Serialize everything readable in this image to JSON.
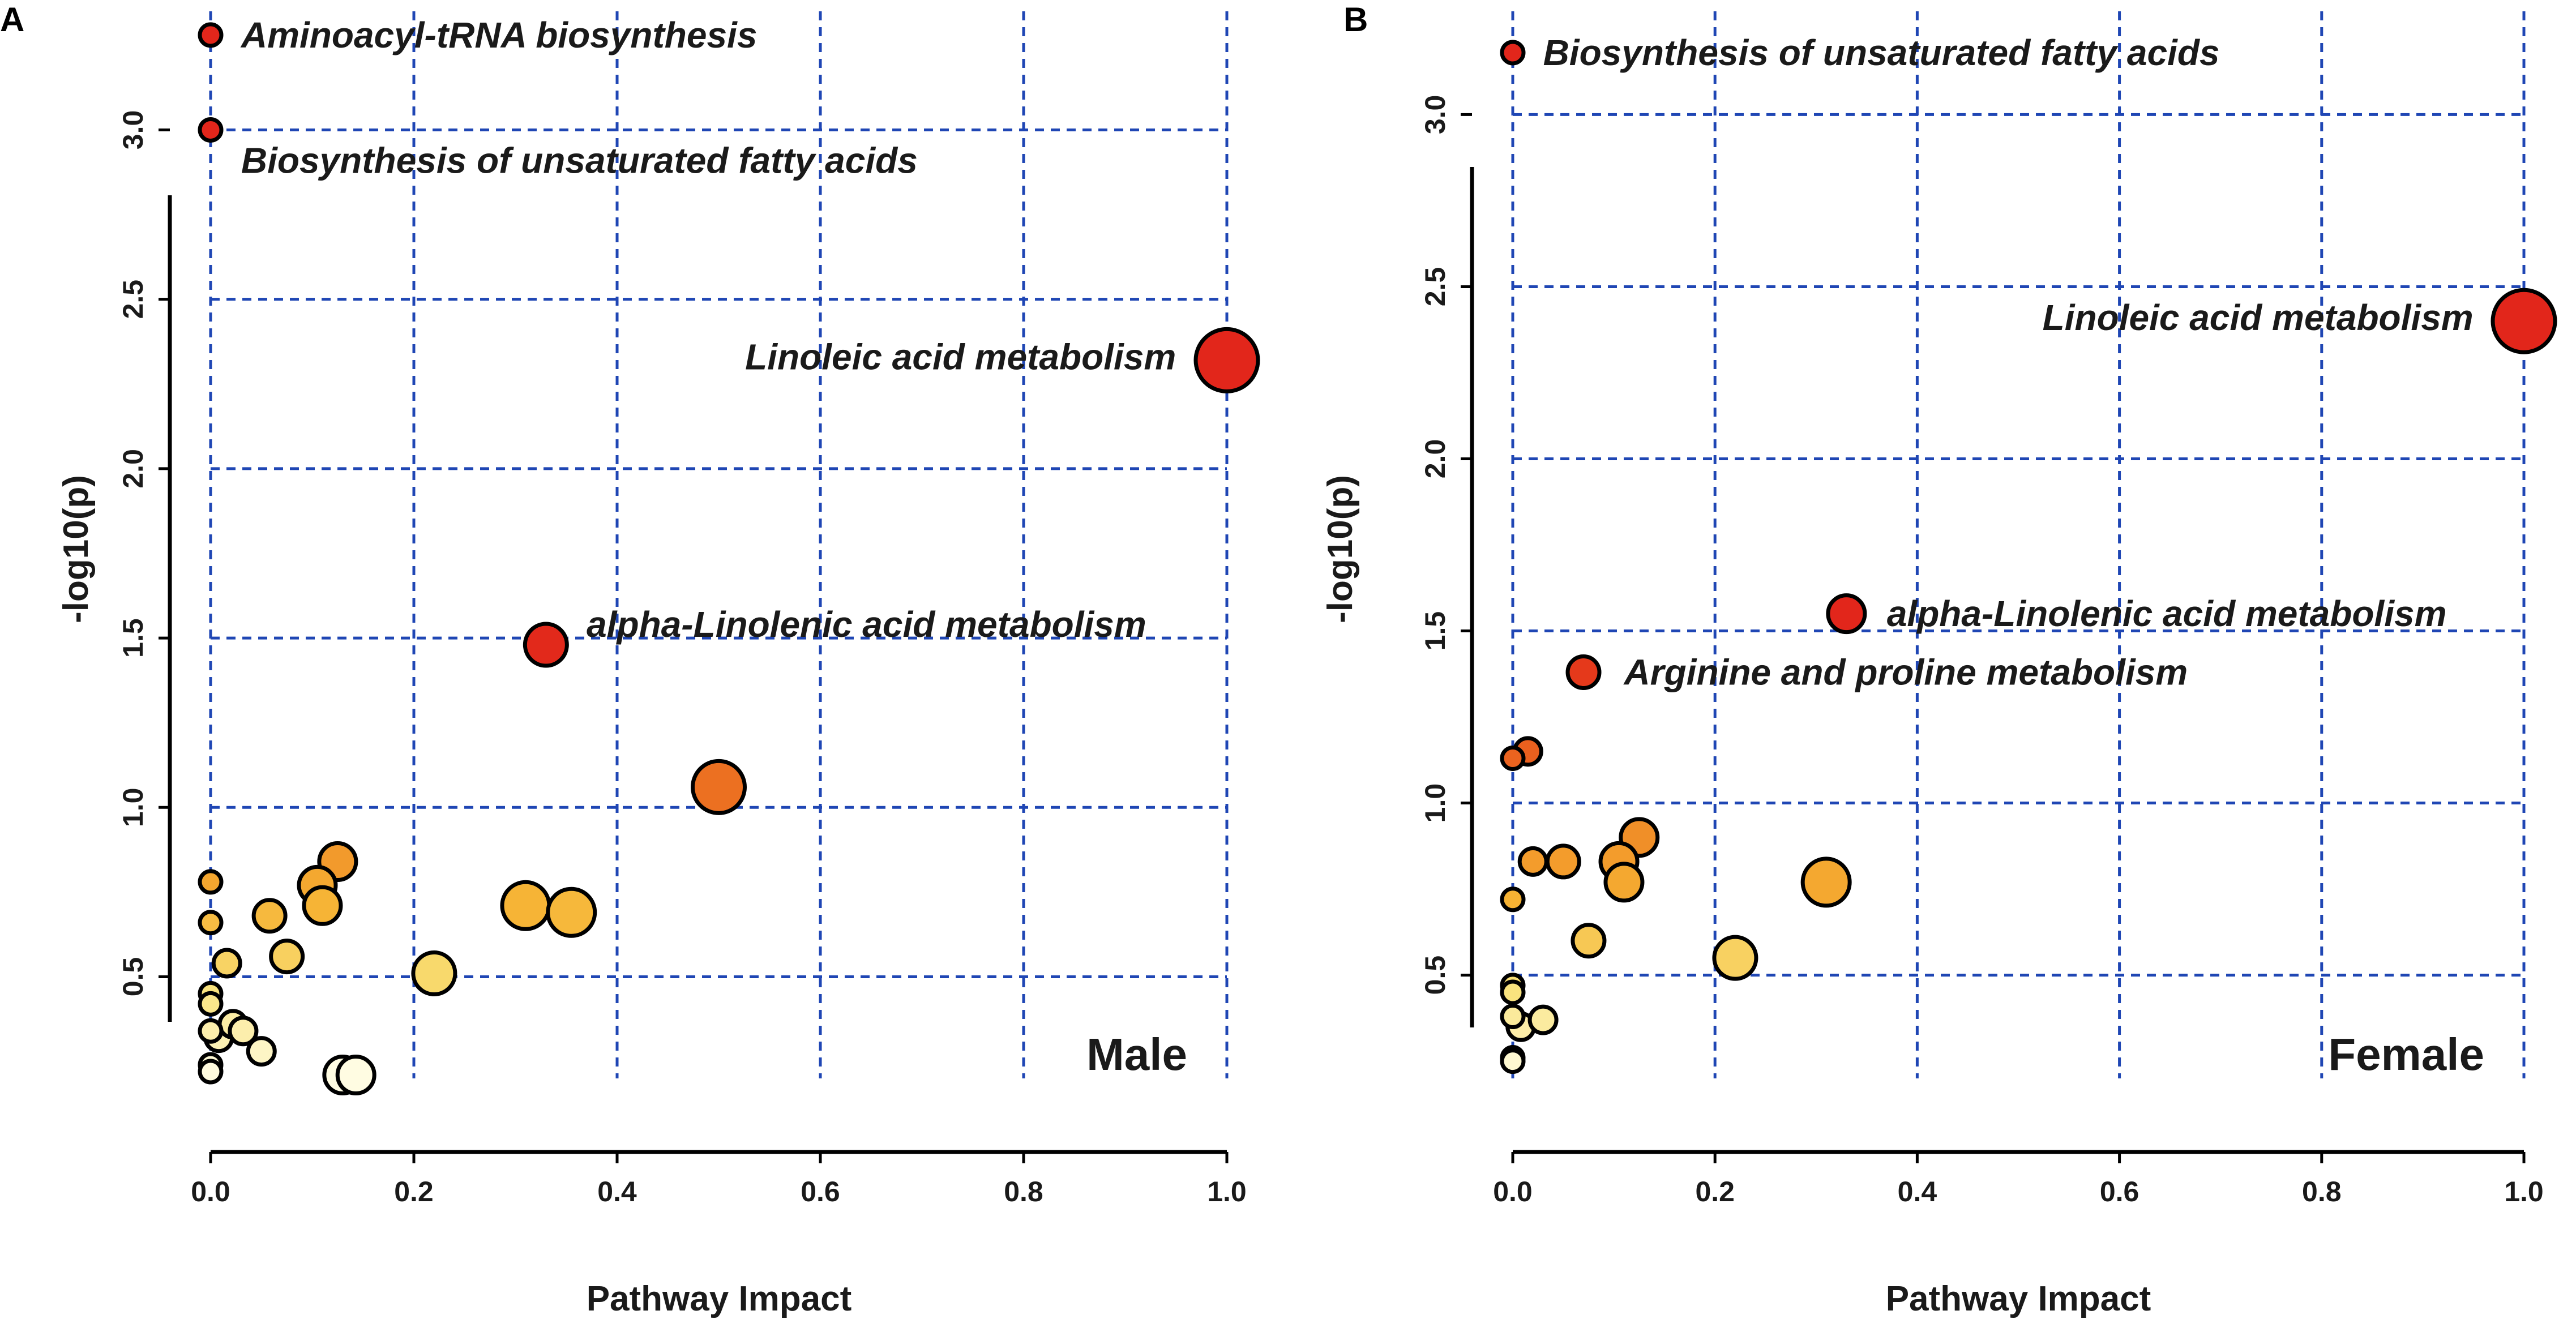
{
  "colors": {
    "grid": "#1f46b4",
    "low": "#fffde6",
    "high": "#e8261b"
  },
  "chart_data": [
    {
      "type": "scatter",
      "panel": "A",
      "corner_label": "Male",
      "xlabel": "Pathway Impact",
      "ylabel": "-log10(p)",
      "xlim": [
        0.0,
        1.0
      ],
      "ylim": [
        0.2,
        3.35
      ],
      "xticks": [
        "0.0",
        "0.2",
        "0.4",
        "0.6",
        "0.8",
        "1.0"
      ],
      "yticks": [
        "0.5",
        "1.0",
        "1.5",
        "2.0",
        "2.5",
        "3.0"
      ],
      "grid": true,
      "points": [
        {
          "x": 0.0,
          "y": 3.28,
          "size": 1,
          "label": "Aminoacyl-tRNA biosynthesis"
        },
        {
          "x": 0.0,
          "y": 3.0,
          "size": 1,
          "label": "Biosynthesis of unsaturated fatty acids"
        },
        {
          "x": 1.0,
          "y": 2.32,
          "size": 5,
          "label": "Linoleic acid metabolism"
        },
        {
          "x": 0.33,
          "y": 1.48,
          "size": 3,
          "label": "alpha-Linolenic acid metabolism"
        },
        {
          "x": 0.5,
          "y": 1.06,
          "size": 4,
          "label": ""
        },
        {
          "x": 0.0,
          "y": 0.78,
          "size": 1,
          "label": ""
        },
        {
          "x": 0.0,
          "y": 0.66,
          "size": 1,
          "label": ""
        },
        {
          "x": 0.125,
          "y": 0.84,
          "size": 2.5,
          "label": ""
        },
        {
          "x": 0.105,
          "y": 0.77,
          "size": 2.5,
          "label": ""
        },
        {
          "x": 0.11,
          "y": 0.71,
          "size": 2.5,
          "label": ""
        },
        {
          "x": 0.058,
          "y": 0.68,
          "size": 2,
          "label": ""
        },
        {
          "x": 0.31,
          "y": 0.71,
          "size": 3.5,
          "label": ""
        },
        {
          "x": 0.355,
          "y": 0.69,
          "size": 3.5,
          "label": ""
        },
        {
          "x": 0.075,
          "y": 0.56,
          "size": 2,
          "label": ""
        },
        {
          "x": 0.016,
          "y": 0.54,
          "size": 1.5,
          "label": ""
        },
        {
          "x": 0.22,
          "y": 0.51,
          "size": 3,
          "label": ""
        },
        {
          "x": 0.0,
          "y": 0.45,
          "size": 1,
          "label": ""
        },
        {
          "x": 0.0,
          "y": 0.42,
          "size": 1,
          "label": ""
        },
        {
          "x": 0.0,
          "y": 0.34,
          "size": 1,
          "label": ""
        },
        {
          "x": 0.008,
          "y": 0.32,
          "size": 1.5,
          "label": ""
        },
        {
          "x": 0.022,
          "y": 0.36,
          "size": 1.5,
          "label": ""
        },
        {
          "x": 0.032,
          "y": 0.34,
          "size": 1.5,
          "label": ""
        },
        {
          "x": 0.05,
          "y": 0.28,
          "size": 1.5,
          "label": ""
        },
        {
          "x": 0.0,
          "y": 0.24,
          "size": 1,
          "label": ""
        },
        {
          "x": 0.0,
          "y": 0.22,
          "size": 1,
          "label": ""
        },
        {
          "x": 0.13,
          "y": 0.21,
          "size": 2.5,
          "label": ""
        },
        {
          "x": 0.143,
          "y": 0.21,
          "size": 2.5,
          "label": ""
        }
      ],
      "label_layout": [
        {
          "point": 0,
          "side": "right",
          "dx": 0.03,
          "dy": 0.0
        },
        {
          "point": 1,
          "side": "right",
          "dx": 0.03,
          "dy": -0.09
        },
        {
          "point": 2,
          "side": "left",
          "dx": -0.05,
          "dy": 0.01
        },
        {
          "point": 3,
          "side": "right",
          "dx": 0.04,
          "dy": 0.06
        }
      ]
    },
    {
      "type": "scatter",
      "panel": "B",
      "corner_label": "Female",
      "xlabel": "Pathway Impact",
      "ylabel": "-log10(p)",
      "xlim": [
        0.0,
        1.0
      ],
      "ylim": [
        0.2,
        3.3
      ],
      "xticks": [
        "0.0",
        "0.2",
        "0.4",
        "0.6",
        "0.8",
        "1.0"
      ],
      "yticks": [
        "0.5",
        "1.0",
        "1.5",
        "2.0",
        "2.5",
        "3.0"
      ],
      "grid": true,
      "points": [
        {
          "x": 0.0,
          "y": 3.18,
          "size": 1,
          "label": "Biosynthesis of unsaturated fatty acids"
        },
        {
          "x": 1.0,
          "y": 2.4,
          "size": 5,
          "label": "Linoleic acid metabolism"
        },
        {
          "x": 0.33,
          "y": 1.55,
          "size": 2.5,
          "label": "alpha-Linolenic acid metabolism"
        },
        {
          "x": 0.07,
          "y": 1.38,
          "size": 2,
          "label": "Arginine and proline metabolism"
        },
        {
          "x": 0.0,
          "y": 1.13,
          "size": 1,
          "label": ""
        },
        {
          "x": 0.015,
          "y": 1.15,
          "size": 1.5,
          "label": ""
        },
        {
          "x": 0.125,
          "y": 0.9,
          "size": 2.5,
          "label": ""
        },
        {
          "x": 0.02,
          "y": 0.83,
          "size": 1.5,
          "label": ""
        },
        {
          "x": 0.05,
          "y": 0.83,
          "size": 2,
          "label": ""
        },
        {
          "x": 0.105,
          "y": 0.83,
          "size": 2.5,
          "label": ""
        },
        {
          "x": 0.11,
          "y": 0.77,
          "size": 2.5,
          "label": ""
        },
        {
          "x": 0.31,
          "y": 0.77,
          "size": 3.5,
          "label": ""
        },
        {
          "x": 0.0,
          "y": 0.72,
          "size": 1,
          "label": ""
        },
        {
          "x": 0.075,
          "y": 0.6,
          "size": 2,
          "label": ""
        },
        {
          "x": 0.22,
          "y": 0.55,
          "size": 3,
          "label": ""
        },
        {
          "x": 0.0,
          "y": 0.47,
          "size": 1,
          "label": ""
        },
        {
          "x": 0.0,
          "y": 0.45,
          "size": 1,
          "label": ""
        },
        {
          "x": 0.0,
          "y": 0.38,
          "size": 1,
          "label": ""
        },
        {
          "x": 0.008,
          "y": 0.35,
          "size": 1.5,
          "label": ""
        },
        {
          "x": 0.03,
          "y": 0.37,
          "size": 1.5,
          "label": ""
        },
        {
          "x": 0.0,
          "y": 0.26,
          "size": 1,
          "label": ""
        },
        {
          "x": 0.0,
          "y": 0.25,
          "size": 1,
          "label": ""
        }
      ],
      "label_layout": [
        {
          "point": 0,
          "side": "right",
          "dx": 0.03,
          "dy": 0.0
        },
        {
          "point": 1,
          "side": "left",
          "dx": -0.05,
          "dy": 0.01
        },
        {
          "point": 2,
          "side": "right",
          "dx": 0.04,
          "dy": 0.0
        },
        {
          "point": 3,
          "side": "right",
          "dx": 0.04,
          "dy": 0.0
        }
      ]
    }
  ]
}
